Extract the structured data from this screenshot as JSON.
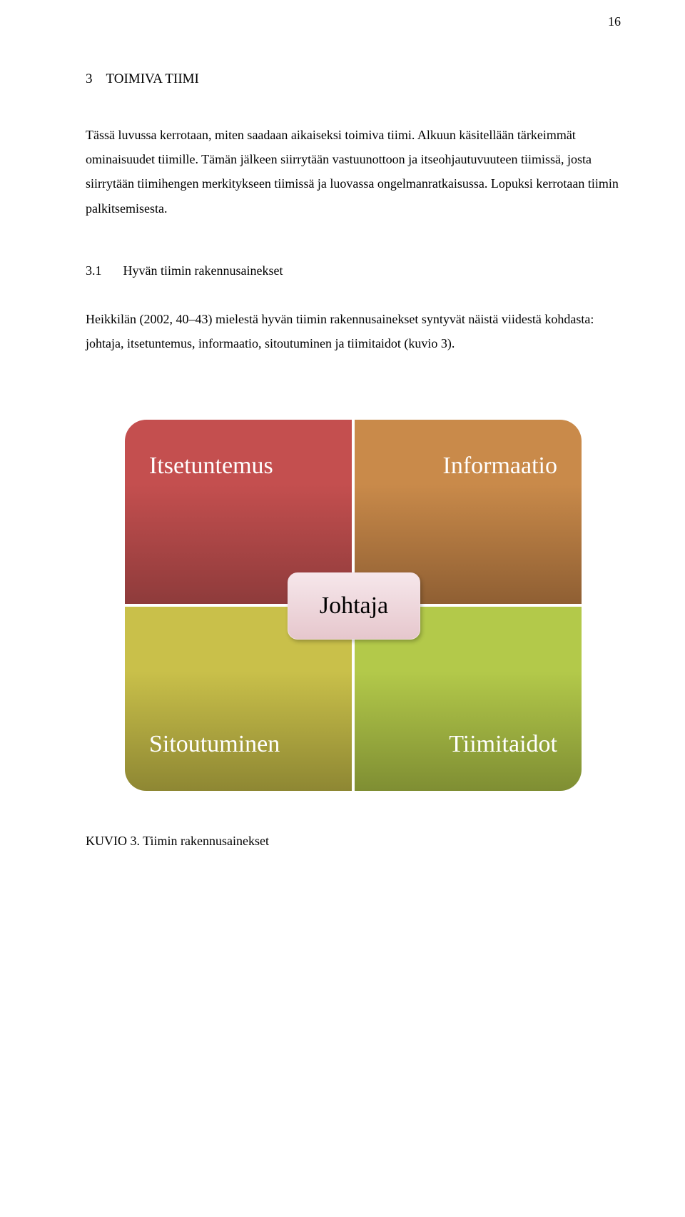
{
  "page_number": "16",
  "chapter": {
    "number": "3",
    "title": "TOIMIVA TIIMI"
  },
  "paragraphs": {
    "p1": "Tässä luvussa kerrotaan, miten saadaan aikaiseksi toimiva tiimi. Alkuun käsitellään tärkeimmät ominaisuudet tiimille. Tämän jälkeen siirrytään vastuunottoon ja itseohjautuvuuteen tiimissä, josta siirrytään tiimihengen merkitykseen tiimissä ja luovassa ongelmanratkaisussa. Lopuksi kerrotaan tiimin palkitsemisesta.",
    "p2": "Heikkilän (2002, 40–43) mielestä hyvän tiimin rakennusainekset syntyvät näistä viidestä kohdasta: johtaja, itsetuntemus, informaatio, sitoutuminen ja tiimitaidot (kuvio 3)."
  },
  "section": {
    "number": "3.1",
    "title": "Hyvän tiimin rakennusainekset"
  },
  "diagram": {
    "type": "infographic",
    "quadrants": {
      "tl": {
        "label": "Itsetuntemus",
        "bg_top": "#c44f4f",
        "bg_bottom": "#8e3b3b"
      },
      "tr": {
        "label": "Informaatio",
        "bg_top": "#c98a4a",
        "bg_bottom": "#8f5f33"
      },
      "bl": {
        "label": "Sitoutuminen",
        "bg_top": "#c9c04a",
        "bg_bottom": "#8e8733"
      },
      "br": {
        "label": "Tiimitaidot",
        "bg_top": "#b3c94a",
        "bg_bottom": "#7f8e33"
      }
    },
    "center": {
      "label": "Johtaja",
      "bg_top": "#f6e7eb",
      "bg_bottom": "#e6c7cd",
      "border": "#f2dfe4"
    },
    "text_color": "#ffffff",
    "font_size": 34,
    "gap": 4,
    "corner_radius": 30,
    "background": "#ffffff"
  },
  "caption": "KUVIO 3. Tiimin rakennusainekset"
}
